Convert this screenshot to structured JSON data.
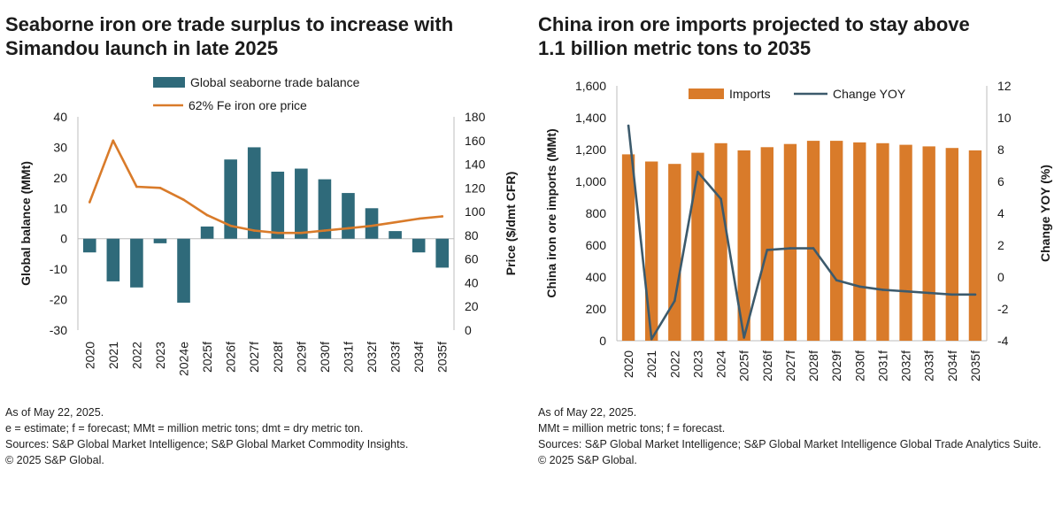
{
  "colors": {
    "bar_teal": "#2F6A7A",
    "line_orange": "#D97B2A",
    "bar_orange": "#D97B2A",
    "line_slate": "#3C5A6C",
    "text": "#1a1a1a",
    "axis": "#bcbcbc"
  },
  "left": {
    "title_line1": "Seaborne iron ore trade surplus to increase with",
    "title_line2": "Simandou launch in late 2025",
    "notes": [
      "As of May 22, 2025.",
      "e = estimate; f = forecast; MMt = million metric tons; dmt = dry metric ton.",
      "Sources: S&P Global Market Intelligence; S&P Global Market Commodity Insights.",
      "© 2025 S&P Global."
    ]
  },
  "right": {
    "title_line1": "China iron ore imports projected to stay above",
    "title_line2": "1.1 billion metric tons to 2035",
    "notes": [
      "As of May 22, 2025.",
      "MMt = million metric tons; f = forecast.",
      "Sources: S&P Global Market Intelligence; S&P Global Market Intelligence Global Trade Analytics Suite.",
      "© 2025 S&P Global."
    ]
  },
  "chart_data": [
    {
      "type": "bar",
      "title": "Seaborne iron ore trade surplus to increase with Simandou launch in late 2025",
      "categories": [
        "2020",
        "2021",
        "2022",
        "2023",
        "2024e",
        "2025f",
        "2026f",
        "2027f",
        "2028f",
        "2029f",
        "2030f",
        "2031f",
        "2032f",
        "2033f",
        "2034f",
        "2035f"
      ],
      "series": [
        {
          "name": "Global seaborne trade balance",
          "type": "bar",
          "axis": "left",
          "values": [
            -4.5,
            -14,
            -16,
            -1.5,
            -21,
            4,
            26,
            30,
            22,
            23,
            19.5,
            15,
            10,
            2.5,
            -4.5,
            -9.5
          ]
        },
        {
          "name": "62% Fe iron ore price",
          "type": "line",
          "axis": "right",
          "values": [
            108,
            160,
            121,
            120,
            110,
            97,
            88,
            84,
            82,
            82,
            84,
            86,
            88,
            91,
            94,
            96
          ]
        }
      ],
      "ylabel": "Global balance (MMt)",
      "ylim": [
        -30,
        40
      ],
      "yticks": [
        "-30",
        "-20",
        "-10",
        "0",
        "10",
        "20",
        "30",
        "40"
      ],
      "y2label": "Price ($/dmt CFR)",
      "y2lim": [
        0,
        180
      ],
      "y2ticks": [
        "0",
        "20",
        "40",
        "60",
        "80",
        "100",
        "120",
        "140",
        "160",
        "180"
      ],
      "legend_position": "top"
    },
    {
      "type": "bar",
      "title": "China iron ore imports projected to stay above 1.1 billion metric tons to 2035",
      "categories": [
        "2020",
        "2021",
        "2022",
        "2023",
        "2024",
        "2025f",
        "2026f",
        "2027f",
        "2028f",
        "2029f",
        "2030f",
        "2031f",
        "2032f",
        "2033f",
        "2034f",
        "2035f"
      ],
      "series": [
        {
          "name": "Imports",
          "type": "bar",
          "axis": "left",
          "values": [
            1170,
            1125,
            1110,
            1180,
            1240,
            1195,
            1215,
            1235,
            1255,
            1255,
            1245,
            1240,
            1230,
            1220,
            1210,
            1195
          ]
        },
        {
          "name": "Change YOY",
          "type": "line",
          "axis": "right",
          "values": [
            9.5,
            -3.9,
            -1.5,
            6.6,
            4.9,
            -3.8,
            1.7,
            1.8,
            1.8,
            -0.2,
            -0.6,
            -0.8,
            -0.9,
            -1.0,
            -1.1,
            -1.1
          ]
        }
      ],
      "ylabel": "China iron ore imports (MMt)",
      "ylim": [
        0,
        1600
      ],
      "yticks": [
        "0",
        "200",
        "400",
        "600",
        "800",
        "1,000",
        "1,200",
        "1,400",
        "1,600"
      ],
      "y2label": "Change YOY (%)",
      "y2lim": [
        -4,
        12
      ],
      "y2ticks": [
        "-4",
        "-2",
        "0",
        "2",
        "4",
        "6",
        "8",
        "10",
        "12"
      ],
      "legend_position": "top"
    }
  ]
}
